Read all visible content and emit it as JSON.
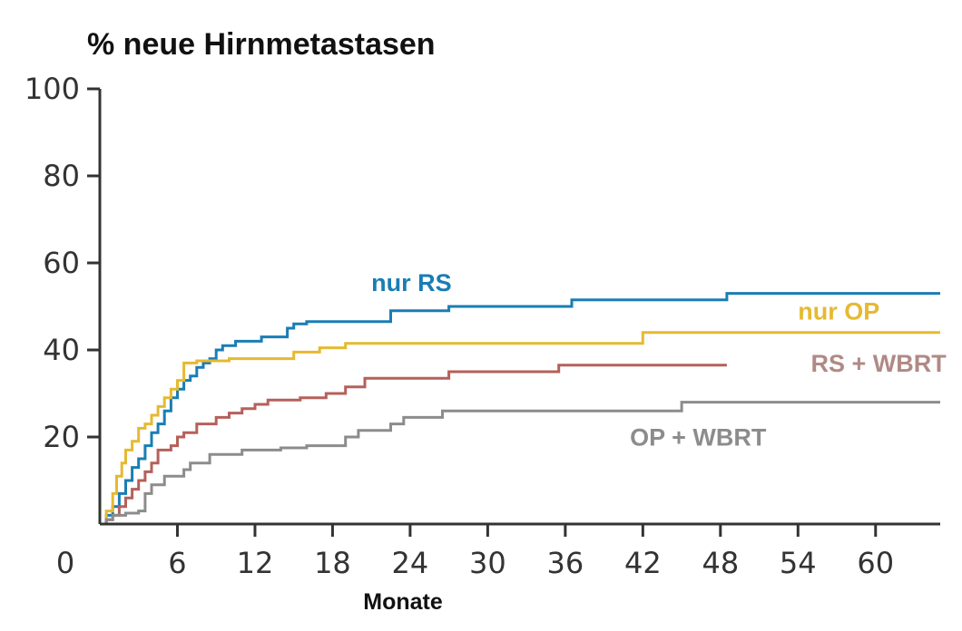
{
  "chart_data": {
    "type": "line",
    "title": "% neue Hirnmetastasen",
    "xlabel": "Monate",
    "ylabel": "",
    "xlim": [
      0,
      65
    ],
    "ylim": [
      0,
      100
    ],
    "x_origin_label": "0",
    "x_ticks": [
      6,
      12,
      18,
      24,
      30,
      36,
      42,
      48,
      54,
      60
    ],
    "x_tick_labels": [
      "6",
      "12",
      "18",
      "24",
      "30",
      "36",
      "42",
      "48",
      "54",
      "60"
    ],
    "y_ticks": [
      20,
      40,
      60,
      80,
      100
    ],
    "y_tick_labels": [
      "20",
      "40",
      "60",
      "80",
      "100"
    ],
    "grid": false,
    "legend": "inline labels",
    "series": [
      {
        "name": "nur RS",
        "color": "#1a7db5",
        "x": [
          0,
          0.5,
          1.0,
          1.5,
          2.0,
          2.5,
          3.0,
          3.5,
          4.0,
          4.5,
          5.0,
          5.5,
          6.0,
          6.5,
          7.0,
          7.5,
          8.0,
          8.5,
          9.0,
          9.5,
          10.5,
          12.5,
          14.5,
          15.0,
          16.0,
          18.5,
          22.5,
          27.0,
          36.5,
          48.5,
          65.0
        ],
        "y": [
          0,
          2,
          4,
          7,
          10,
          13,
          15,
          18,
          21,
          23,
          26,
          29,
          31,
          33,
          34,
          36,
          37,
          38,
          40,
          41,
          42,
          43,
          45,
          46,
          46.5,
          46.5,
          49,
          50,
          51.5,
          53,
          53
        ]
      },
      {
        "name": "nur OP",
        "color": "#e6b931",
        "x": [
          0,
          0.5,
          1.0,
          1.3,
          1.7,
          2.0,
          2.5,
          3.0,
          3.5,
          4.0,
          4.5,
          5.0,
          5.5,
          6.0,
          6.5,
          7.5,
          10.0,
          15.0,
          17.0,
          19.0,
          42.0,
          65.0
        ],
        "y": [
          0,
          3,
          7,
          11,
          14,
          17,
          19,
          22,
          23,
          25,
          27,
          29,
          31,
          33,
          37,
          37.5,
          38,
          39.5,
          40.5,
          41.5,
          44,
          44
        ]
      },
      {
        "name": "RS + WBRT",
        "color": "#b5605a",
        "x": [
          0,
          0.5,
          1.0,
          1.5,
          2.0,
          2.5,
          3.0,
          3.5,
          4.0,
          4.5,
          5.5,
          6.0,
          6.5,
          7.5,
          9.0,
          10.0,
          11.0,
          12.0,
          13.0,
          15.5,
          17.5,
          19.0,
          20.5,
          27.0,
          35.5,
          48.5
        ],
        "y": [
          0,
          1,
          2,
          4,
          6,
          8,
          10,
          12,
          14,
          17,
          18,
          20,
          21,
          23,
          24.5,
          25.5,
          26.5,
          27.5,
          28.5,
          29,
          30,
          31.5,
          33.5,
          35,
          36.5,
          36.5
        ]
      },
      {
        "name": "OP + WBRT",
        "color": "#8c8c8c",
        "x": [
          0,
          0.5,
          1.0,
          2.0,
          3.0,
          3.5,
          4.0,
          5.0,
          6.5,
          7.0,
          8.5,
          11.0,
          14.0,
          16.0,
          19.0,
          20.0,
          22.5,
          23.5,
          26.5,
          45.0,
          65.0
        ],
        "y": [
          0,
          1,
          2,
          2.5,
          3,
          7,
          9,
          11,
          12.5,
          14,
          16,
          17,
          17.5,
          18,
          20,
          21.5,
          23,
          24.5,
          26,
          28,
          28
        ]
      }
    ],
    "labels": [
      {
        "text": "nur RS",
        "series": "nur RS",
        "x": 21,
        "y": 53.5
      },
      {
        "text": "nur OP",
        "series": "nur OP",
        "x": 54,
        "y": 47
      },
      {
        "text": "RS + WBRT",
        "series": "RS + WBRT",
        "x": 55,
        "y": 35
      },
      {
        "text": "OP + WBRT",
        "series": "OP + WBRT",
        "x": 41,
        "y": 18
      }
    ]
  }
}
